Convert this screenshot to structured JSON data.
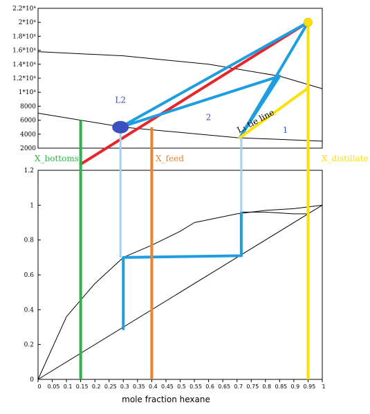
{
  "chart_data": [
    {
      "type": "line",
      "name": "enthalpy-concentration",
      "xlim": [
        0,
        1
      ],
      "ylim": [
        2000,
        22000
      ],
      "y_tick_labels": [
        "2.2*10⁴",
        "2*10⁴",
        "1.8*10⁴",
        "1.6*10⁴",
        "1.4*10⁴",
        "1.2*10⁴",
        "1*10⁴",
        "8000",
        "6000",
        "4000",
        "2000"
      ],
      "y_tick_values": [
        22000,
        20000,
        18000,
        16000,
        14000,
        12000,
        10000,
        8000,
        6000,
        4000,
        2000
      ],
      "curves": [
        {
          "role": "saturated-vapor",
          "color": "#000000",
          "x": [
            0,
            0.3,
            0.6,
            0.85,
            1.0
          ],
          "y": [
            15800,
            15200,
            14000,
            12300,
            10500
          ]
        },
        {
          "role": "saturated-liquid",
          "color": "#000000",
          "x": [
            0,
            0.3,
            0.7,
            1.0
          ],
          "y": [
            7000,
            5000,
            3500,
            3000
          ]
        },
        {
          "role": "red-operating-line",
          "color": "#e8262a",
          "x": [
            0.15,
            0.95
          ],
          "y": [
            -300,
            20000
          ]
        },
        {
          "role": "stage-lines",
          "color": "#1e9ee0",
          "x": [
            0.29,
            0.85,
            0.71,
            0.95,
            0.71
          ],
          "y": [
            5000,
            12300,
            3500,
            20000,
            3500
          ]
        },
        {
          "role": "stage-tie",
          "color": "#1e9ee0",
          "x": [
            0.29,
            0.95
          ],
          "y": [
            5000,
            20000
          ]
        },
        {
          "role": "yellow-tie",
          "color": "#ffe000",
          "x": [
            0.71,
            0.95
          ],
          "y": [
            3500,
            10600
          ]
        }
      ],
      "annotations": [
        {
          "text": "L2",
          "x": 0.29,
          "y": 8500,
          "color": "#3a4fc0"
        },
        {
          "text": "2",
          "x": 0.6,
          "y": 6000,
          "color": "#3a4fc0"
        },
        {
          "text": "1",
          "x": 0.87,
          "y": 4200,
          "color": "#3a4fc0"
        },
        {
          "text": "L₁ tie line",
          "x": 0.77,
          "y": 5500,
          "color": "#000000"
        }
      ]
    },
    {
      "type": "line",
      "name": "x-y-equilibrium",
      "xlim": [
        0,
        1
      ],
      "ylim": [
        0,
        1.2
      ],
      "xlabel": "mole fraction hexane",
      "x_ticks": [
        "0",
        "0.05",
        "0.1",
        "0.15",
        "0.2",
        "0.25",
        "0.3",
        "0.35",
        "0.4",
        "0.45",
        "0.5",
        "0.55",
        "0.6",
        "0.65",
        "0.7",
        "0.75",
        "0.8",
        "0.85",
        "0.9",
        "0.95",
        "1"
      ],
      "y_ticks": [
        "1.2",
        "1",
        "0.8",
        "0.6",
        "0.4",
        "0.2",
        "0"
      ],
      "series": [
        {
          "role": "equilibrium-curve",
          "color": "#000000",
          "x": [
            0,
            0.1,
            0.2,
            0.3,
            0.4,
            0.5,
            0.55,
            0.7,
            0.8,
            0.9,
            1.0
          ],
          "y": [
            0,
            0.36,
            0.55,
            0.7,
            0.77,
            0.85,
            0.9,
            0.95,
            0.97,
            0.98,
            1.0
          ]
        },
        {
          "role": "diagonal",
          "color": "#000000",
          "x": [
            0,
            1
          ],
          "y": [
            0,
            1
          ]
        },
        {
          "role": "operating-line",
          "color": "#000000",
          "x": [
            0.715,
            0.8,
            0.9,
            0.95
          ],
          "y": [
            0.96,
            0.96,
            0.95,
            0.95
          ]
        },
        {
          "role": "stage-steps",
          "color": "#1e9ee0",
          "x": [
            0.715,
            0.715,
            0.3,
            0.3
          ],
          "y": [
            0.96,
            0.71,
            0.7,
            0.29
          ]
        },
        {
          "role": "X_bottoms",
          "color": "#2db34a",
          "x": [
            0.15,
            0.15
          ],
          "y": [
            0,
            1.18
          ]
        },
        {
          "role": "X_feed",
          "color": "#f0822e",
          "x": [
            0.4,
            0.4
          ],
          "y": [
            0,
            1.45
          ]
        },
        {
          "role": "X_distillate",
          "color": "#ffe000",
          "x": [
            0.95,
            0.95
          ],
          "y": [
            0,
            2.2
          ]
        }
      ],
      "connectors": [
        {
          "color": "#9ed3f2",
          "x": 0.29,
          "from": "upper",
          "to_y": 0.7
        },
        {
          "color": "#9ed3f2",
          "x": 0.715,
          "from": "upper",
          "to_y": 0.96
        }
      ],
      "labels": [
        {
          "text": "X_bottoms",
          "color": "#2db34a"
        },
        {
          "text": "X_feed",
          "color": "#f0822e"
        },
        {
          "text": "X_distillate",
          "color": "#ffe000"
        }
      ]
    }
  ]
}
